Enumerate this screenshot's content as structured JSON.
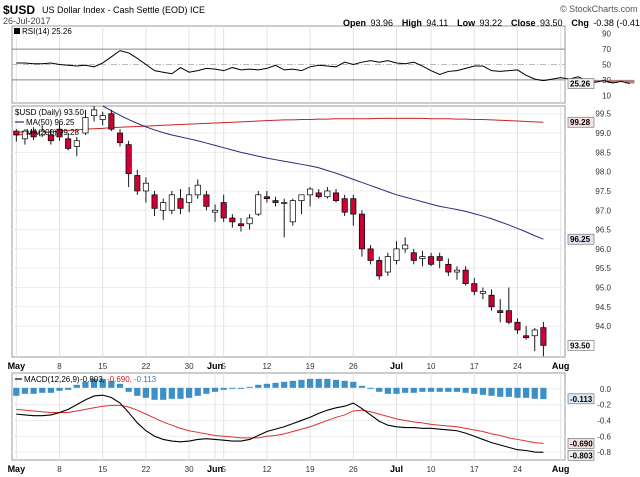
{
  "header": {
    "symbol": "$USD",
    "description": "US Dollar Index - Cash Settle (EOD) ICE",
    "date": "26-Jul-2017",
    "watermark": "© StockCharts.com",
    "quote": [
      {
        "label": "Open",
        "value": "93.96"
      },
      {
        "label": "High",
        "value": "94.11"
      },
      {
        "label": "Low",
        "value": "93.22"
      },
      {
        "label": "Close",
        "value": "93.50"
      },
      {
        "label": "Chg",
        "value": "-0.38 (-0.41%)"
      }
    ],
    "chg_arrow": "▼",
    "colors": {
      "down": "#cc0033",
      "up": "#ffffff",
      "ma50": "#2b2b7c",
      "ma200": "#cc2222",
      "macd_hist": "#3d8fc7",
      "macd_line": "#000000",
      "signal_line": "#e03030",
      "rsi_line": "#000000",
      "rsi_fill": "#a06060"
    }
  },
  "chart_data": [
    {
      "type": "line",
      "title": "RSI(14) 25.26",
      "legend_label": "RSI(14)",
      "legend_value": "25.26",
      "ylim": [
        0,
        100
      ],
      "yticks": [
        10,
        30,
        50,
        70,
        90
      ],
      "hlines": [
        30,
        50,
        70
      ],
      "current_label": "25.26",
      "values": [
        52,
        52,
        51,
        51,
        52,
        50,
        49,
        48,
        49,
        47,
        52,
        60,
        68,
        65,
        58,
        50,
        42,
        40,
        38,
        46,
        40,
        42,
        45,
        44,
        42,
        46,
        43,
        44,
        43,
        45,
        49,
        43,
        44,
        42,
        47,
        49,
        48,
        47,
        53,
        50,
        53,
        55,
        53,
        55,
        52,
        51,
        53,
        48,
        42,
        37,
        41,
        42,
        45,
        48,
        48,
        42,
        41,
        42,
        43,
        36,
        31,
        29,
        31,
        33,
        31,
        34,
        29,
        27,
        29,
        26,
        28,
        25.26
      ]
    },
    {
      "type": "candlestick",
      "title": "$USD (Daily) 93.50",
      "legend": [
        {
          "name": "$USD (Daily)",
          "value": "93.50"
        },
        {
          "name": "MA(50)",
          "value": "96.25"
        },
        {
          "name": "MA(200)",
          "value": "99.28"
        }
      ],
      "ylim": [
        93.2,
        99.7
      ],
      "yticks": [
        94.0,
        94.5,
        95.0,
        95.5,
        96.0,
        96.5,
        97.0,
        97.5,
        98.0,
        98.5,
        99.0,
        99.5
      ],
      "ytick_labels": [
        "94.0",
        "94.5",
        "95.0",
        "95.5",
        "96.0",
        "96.5",
        "97.0",
        "97.5",
        "98.0",
        "98.5",
        "99.0",
        "99.5"
      ],
      "current_labels": [
        "99.28",
        "96.25",
        "93.50"
      ],
      "current_values": [
        99.28,
        96.25,
        93.5
      ],
      "x_labels": [
        {
          "label": "May",
          "index": 0
        },
        {
          "label": "8",
          "index": 5
        },
        {
          "label": "15",
          "index": 10
        },
        {
          "label": "22",
          "index": 15
        },
        {
          "label": "30",
          "index": 20
        },
        {
          "label": "Jun",
          "index": 23
        },
        {
          "label": "5",
          "index": 24
        },
        {
          "label": "12",
          "index": 29
        },
        {
          "label": "19",
          "index": 34
        },
        {
          "label": "26",
          "index": 39
        },
        {
          "label": "Jul",
          "index": 44
        },
        {
          "label": "10",
          "index": 48
        },
        {
          "label": "17",
          "index": 53
        },
        {
          "label": "24",
          "index": 58
        },
        {
          "label": "Aug",
          "index": 63
        }
      ],
      "ohlc": [
        [
          99.05,
          99.1,
          98.78,
          98.95
        ],
        [
          98.85,
          99.1,
          98.7,
          99.05
        ],
        [
          99.05,
          99.15,
          98.82,
          98.9
        ],
        [
          98.95,
          99.2,
          98.9,
          99.05
        ],
        [
          98.95,
          99.1,
          98.7,
          98.8
        ],
        [
          99.1,
          99.25,
          98.8,
          98.9
        ],
        [
          98.85,
          99.0,
          98.55,
          98.6
        ],
        [
          98.65,
          98.9,
          98.4,
          98.8
        ],
        [
          99.0,
          99.6,
          98.95,
          99.4
        ],
        [
          99.45,
          99.7,
          99.3,
          99.6
        ],
        [
          99.35,
          99.55,
          99.2,
          99.45
        ],
        [
          99.5,
          99.6,
          99.05,
          99.1
        ],
        [
          99.0,
          99.1,
          98.65,
          98.75
        ],
        [
          98.7,
          98.8,
          97.6,
          97.95
        ],
        [
          97.9,
          98.05,
          97.4,
          97.5
        ],
        [
          97.5,
          97.85,
          97.2,
          97.7
        ],
        [
          97.4,
          97.5,
          96.85,
          97.05
        ],
        [
          97.0,
          97.3,
          96.75,
          97.2
        ],
        [
          97.0,
          97.5,
          96.9,
          97.4
        ],
        [
          97.3,
          97.55,
          96.9,
          97.05
        ],
        [
          97.2,
          97.6,
          96.95,
          97.4
        ],
        [
          97.4,
          97.8,
          97.3,
          97.65
        ],
        [
          97.4,
          97.5,
          97.0,
          97.1
        ],
        [
          96.95,
          97.15,
          96.7,
          97.0
        ],
        [
          97.2,
          97.4,
          96.7,
          96.8
        ],
        [
          96.8,
          96.9,
          96.55,
          96.7
        ],
        [
          96.65,
          96.8,
          96.45,
          96.6
        ],
        [
          96.65,
          96.9,
          96.5,
          96.8
        ],
        [
          96.9,
          97.5,
          96.85,
          97.4
        ],
        [
          97.35,
          97.5,
          97.2,
          97.3
        ],
        [
          97.25,
          97.35,
          97.1,
          97.2
        ],
        [
          97.2,
          97.3,
          96.3,
          97.2
        ],
        [
          96.7,
          97.3,
          96.6,
          97.25
        ],
        [
          97.25,
          97.4,
          96.9,
          97.4
        ],
        [
          97.4,
          97.6,
          97.1,
          97.55
        ],
        [
          97.45,
          97.55,
          97.3,
          97.35
        ],
        [
          97.35,
          97.6,
          97.3,
          97.5
        ],
        [
          97.45,
          97.55,
          97.2,
          97.25
        ],
        [
          97.3,
          97.4,
          96.85,
          96.95
        ],
        [
          97.3,
          97.4,
          96.6,
          96.9
        ],
        [
          96.9,
          97.0,
          95.8,
          96.0
        ],
        [
          96.0,
          96.1,
          95.6,
          95.7
        ],
        [
          95.7,
          95.8,
          95.2,
          95.3
        ],
        [
          95.4,
          95.9,
          95.3,
          95.8
        ],
        [
          95.7,
          96.2,
          95.6,
          96.0
        ],
        [
          96.0,
          96.3,
          95.9,
          96.1
        ],
        [
          95.9,
          96.0,
          95.6,
          95.7
        ],
        [
          95.75,
          95.95,
          95.55,
          95.8
        ],
        [
          95.8,
          95.9,
          95.55,
          95.6
        ],
        [
          95.8,
          95.9,
          95.5,
          95.7
        ],
        [
          95.6,
          95.75,
          95.3,
          95.4
        ],
        [
          95.4,
          95.55,
          95.2,
          95.45
        ],
        [
          95.45,
          95.55,
          95.05,
          95.1
        ],
        [
          95.1,
          95.25,
          94.8,
          94.9
        ],
        [
          94.85,
          95.0,
          94.7,
          94.9
        ],
        [
          94.8,
          94.95,
          94.4,
          94.5
        ],
        [
          94.4,
          94.7,
          94.1,
          94.35
        ],
        [
          94.4,
          95.0,
          94.05,
          94.1
        ],
        [
          94.1,
          94.2,
          93.8,
          93.9
        ],
        [
          93.75,
          94.0,
          93.65,
          93.7
        ],
        [
          93.75,
          93.95,
          93.35,
          93.9
        ],
        [
          93.96,
          94.11,
          93.22,
          93.5
        ]
      ],
      "series": [
        {
          "name": "MA(50)",
          "values": [
            null,
            null,
            null,
            null,
            null,
            null,
            null,
            null,
            null,
            null,
            99.7,
            99.58,
            99.46,
            99.35,
            99.25,
            99.16,
            99.08,
            99.01,
            98.95,
            98.9,
            98.85,
            98.8,
            98.74,
            98.68,
            98.62,
            98.56,
            98.5,
            98.45,
            98.4,
            98.35,
            98.31,
            98.27,
            98.23,
            98.19,
            98.15,
            98.1,
            98.03,
            97.96,
            97.88,
            97.8,
            97.72,
            97.64,
            97.56,
            97.48,
            97.4,
            97.34,
            97.28,
            97.22,
            97.16,
            97.1,
            97.06,
            97.02,
            96.97,
            96.91,
            96.85,
            96.78,
            96.7,
            96.62,
            96.53,
            96.44,
            96.34,
            96.25
          ]
        },
        {
          "name": "MA(200)",
          "values": [
            98.95,
            98.97,
            98.99,
            99.01,
            99.03,
            99.05,
            99.07,
            99.08,
            99.1,
            99.11,
            99.12,
            99.14,
            99.15,
            99.16,
            99.17,
            99.18,
            99.19,
            99.2,
            99.21,
            99.22,
            99.23,
            99.24,
            99.25,
            99.26,
            99.27,
            99.28,
            99.29,
            99.3,
            99.31,
            99.32,
            99.33,
            99.34,
            99.34,
            99.35,
            99.35,
            99.36,
            99.36,
            99.37,
            99.37,
            99.37,
            99.37,
            99.37,
            99.38,
            99.38,
            99.38,
            99.38,
            99.38,
            99.38,
            99.37,
            99.37,
            99.37,
            99.36,
            99.36,
            99.35,
            99.35,
            99.34,
            99.33,
            99.32,
            99.31,
            99.3,
            99.29,
            99.28
          ]
        }
      ]
    },
    {
      "type": "bar",
      "title": "MACD(12,26,9) -0.803, -0.690, -0.113",
      "legend_label": "MACD(12,26,9)",
      "legend_values": [
        "-0.803",
        "-0.690",
        "-0.113"
      ],
      "ylim": [
        -0.9,
        0.2
      ],
      "yticks": [
        0.0,
        -0.2,
        -0.4,
        -0.6,
        -0.8
      ],
      "ytick_labels": [
        "0.0",
        "-0.2",
        "-0.4",
        "-0.6",
        "-0.8"
      ],
      "current_labels": [
        "-0.113",
        "-0.690",
        "-0.803"
      ],
      "current_values": [
        -0.113,
        -0.69,
        -0.803
      ],
      "x_labels": [
        {
          "label": "May",
          "index": 0
        },
        {
          "label": "8",
          "index": 5
        },
        {
          "label": "15",
          "index": 10
        },
        {
          "label": "22",
          "index": 15
        },
        {
          "label": "30",
          "index": 20
        },
        {
          "label": "Jun",
          "index": 23
        },
        {
          "label": "5",
          "index": 24
        },
        {
          "label": "12",
          "index": 29
        },
        {
          "label": "19",
          "index": 34
        },
        {
          "label": "26",
          "index": 39
        },
        {
          "label": "Jul",
          "index": 44
        },
        {
          "label": "10",
          "index": 48
        },
        {
          "label": "17",
          "index": 53
        },
        {
          "label": "24",
          "index": 58
        },
        {
          "label": "Aug",
          "index": 63
        }
      ],
      "histogram": [
        -0.08,
        -0.06,
        -0.06,
        -0.05,
        -0.05,
        -0.03,
        -0.02,
        0.03,
        0.06,
        0.09,
        0.09,
        0.07,
        0.04,
        -0.04,
        -0.08,
        -0.1,
        -0.12,
        -0.12,
        -0.11,
        -0.11,
        -0.1,
        -0.08,
        -0.06,
        -0.04,
        -0.02,
        -0.01,
        -0.01,
        0.01,
        0.03,
        0.04,
        0.05,
        0.06,
        0.07,
        0.08,
        0.09,
        0.09,
        0.09,
        0.08,
        0.07,
        0.06,
        0.02,
        -0.01,
        -0.04,
        -0.06,
        -0.06,
        -0.05,
        -0.05,
        -0.04,
        -0.04,
        -0.04,
        -0.04,
        -0.04,
        -0.05,
        -0.06,
        -0.07,
        -0.08,
        -0.09,
        -0.09,
        -0.1,
        -0.1,
        -0.11,
        -0.113
      ],
      "series": [
        {
          "name": "MACD",
          "values": [
            -0.32,
            -0.33,
            -0.34,
            -0.34,
            -0.33,
            -0.3,
            -0.26,
            -0.2,
            -0.14,
            -0.09,
            -0.08,
            -0.11,
            -0.18,
            -0.3,
            -0.43,
            -0.53,
            -0.6,
            -0.64,
            -0.66,
            -0.67,
            -0.66,
            -0.64,
            -0.63,
            -0.64,
            -0.65,
            -0.66,
            -0.66,
            -0.64,
            -0.59,
            -0.54,
            -0.51,
            -0.48,
            -0.44,
            -0.4,
            -0.36,
            -0.31,
            -0.27,
            -0.24,
            -0.22,
            -0.18,
            -0.25,
            -0.33,
            -0.41,
            -0.46,
            -0.48,
            -0.49,
            -0.49,
            -0.5,
            -0.5,
            -0.51,
            -0.52,
            -0.53,
            -0.56,
            -0.6,
            -0.64,
            -0.68,
            -0.71,
            -0.74,
            -0.77,
            -0.78,
            -0.8,
            -0.803
          ]
        },
        {
          "name": "Signal",
          "values": [
            -0.26,
            -0.27,
            -0.28,
            -0.29,
            -0.3,
            -0.3,
            -0.3,
            -0.28,
            -0.26,
            -0.24,
            -0.22,
            -0.21,
            -0.21,
            -0.23,
            -0.27,
            -0.32,
            -0.37,
            -0.42,
            -0.46,
            -0.5,
            -0.53,
            -0.55,
            -0.57,
            -0.59,
            -0.6,
            -0.61,
            -0.62,
            -0.62,
            -0.62,
            -0.6,
            -0.59,
            -0.57,
            -0.54,
            -0.51,
            -0.48,
            -0.44,
            -0.4,
            -0.36,
            -0.33,
            -0.28,
            -0.27,
            -0.29,
            -0.32,
            -0.35,
            -0.38,
            -0.4,
            -0.42,
            -0.43,
            -0.45,
            -0.46,
            -0.47,
            -0.48,
            -0.5,
            -0.52,
            -0.54,
            -0.57,
            -0.59,
            -0.62,
            -0.64,
            -0.66,
            -0.68,
            -0.69
          ]
        }
      ]
    }
  ]
}
